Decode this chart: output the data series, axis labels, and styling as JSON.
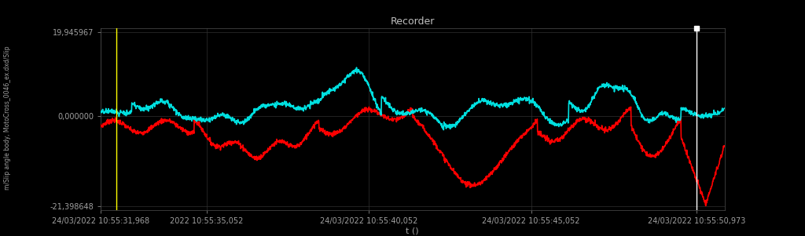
{
  "title": "Recorder",
  "xlabel": "t ()",
  "ylabel_left": "m/Slip angle body, MotoCross_0046_ex.dxd/Slip",
  "y_min": -21.398648,
  "y_max": 19.945967,
  "y_ticks": [
    -21.398648,
    0.0,
    19.945967
  ],
  "y_tick_labels": [
    "-21,398648",
    "0,000000",
    "19,945967"
  ],
  "x_tick_positions": [
    0.0,
    0.17,
    0.43,
    0.69,
    0.955
  ],
  "x_ticks_labels": [
    "24/03/2022 10:55:31,968",
    "2022 10:55:35,052",
    "24/03/2022 10:55:40,052",
    "24/03/2022 10:55:45,052",
    "24/03/2022 10:55:50,973"
  ],
  "background_color": "#000000",
  "grid_color": "#303030",
  "title_color": "#c0c0c0",
  "tick_color": "#a0a0a0",
  "axis_color": "#505050",
  "red_color": "#ff0000",
  "cyan_color": "#00e0e0",
  "yellow_color": "#ffff00",
  "white_color": "#ffffff",
  "yellow_line_x": 0.025,
  "white_line_x": 0.955,
  "line_width": 1.2
}
